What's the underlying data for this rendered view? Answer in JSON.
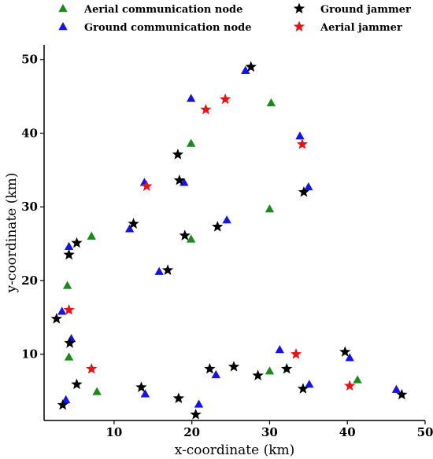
{
  "chart_data": {
    "type": "scatter",
    "xlabel": "x-coordinate (km)",
    "ylabel": "y-coordinate (km)",
    "xlim": [
      1,
      50
    ],
    "ylim": [
      1,
      52
    ],
    "xticks": [
      10,
      20,
      30,
      40,
      50
    ],
    "yticks": [
      10,
      20,
      30,
      40,
      50
    ],
    "grid": false,
    "legend_placement": "top",
    "series": [
      {
        "name": "Aerial communication node",
        "marker": "triangle",
        "color": "#1a8a1a",
        "points": [
          [
            4.0,
            19.3
          ],
          [
            7.1,
            26.0
          ],
          [
            4.2,
            9.6
          ],
          [
            7.8,
            4.9
          ],
          [
            19.9,
            38.6
          ],
          [
            19.9,
            25.6
          ],
          [
            30.2,
            44.1
          ],
          [
            30.0,
            29.7
          ],
          [
            30.0,
            7.7
          ],
          [
            41.3,
            6.5
          ]
        ]
      },
      {
        "name": "Ground communication node",
        "marker": "triangle",
        "color": "#1414e6",
        "points": [
          [
            4.2,
            24.6
          ],
          [
            3.3,
            15.8
          ],
          [
            4.5,
            12.1
          ],
          [
            3.8,
            3.8
          ],
          [
            12.0,
            27.0
          ],
          [
            13.9,
            33.3
          ],
          [
            15.8,
            21.2
          ],
          [
            19.9,
            44.7
          ],
          [
            19.0,
            33.3
          ],
          [
            14.0,
            4.6
          ],
          [
            20.9,
            3.2
          ],
          [
            23.1,
            7.2
          ],
          [
            24.5,
            28.2
          ],
          [
            26.9,
            48.5
          ],
          [
            33.9,
            39.6
          ],
          [
            35.0,
            32.7
          ],
          [
            31.3,
            10.6
          ],
          [
            35.1,
            5.9
          ],
          [
            40.3,
            9.5
          ],
          [
            46.3,
            5.2
          ]
        ]
      },
      {
        "name": "Ground jammer",
        "marker": "star",
        "color": "#000000",
        "points": [
          [
            27.6,
            49.0
          ],
          [
            18.2,
            37.1
          ],
          [
            18.4,
            33.6
          ],
          [
            12.5,
            27.7
          ],
          [
            19.1,
            26.1
          ],
          [
            23.3,
            27.3
          ],
          [
            5.2,
            25.1
          ],
          [
            4.2,
            23.5
          ],
          [
            16.9,
            21.4
          ],
          [
            2.6,
            14.8
          ],
          [
            4.3,
            11.5
          ],
          [
            5.2,
            5.9
          ],
          [
            3.4,
            3.1
          ],
          [
            13.5,
            5.5
          ],
          [
            18.3,
            4.0
          ],
          [
            20.5,
            1.8
          ],
          [
            22.3,
            8.0
          ],
          [
            25.4,
            8.3
          ],
          [
            28.5,
            7.1
          ],
          [
            32.2,
            8.0
          ],
          [
            34.4,
            32.0
          ],
          [
            34.3,
            5.3
          ],
          [
            39.7,
            10.3
          ],
          [
            47.0,
            4.5
          ]
        ]
      },
      {
        "name": "Aerial jammer",
        "marker": "star",
        "color": "#e61414",
        "points": [
          [
            24.3,
            44.6
          ],
          [
            21.8,
            43.2
          ],
          [
            14.2,
            32.8
          ],
          [
            4.2,
            16.0
          ],
          [
            7.1,
            8.0
          ],
          [
            33.4,
            10.0
          ],
          [
            34.2,
            38.5
          ],
          [
            40.3,
            5.7
          ]
        ]
      }
    ]
  }
}
